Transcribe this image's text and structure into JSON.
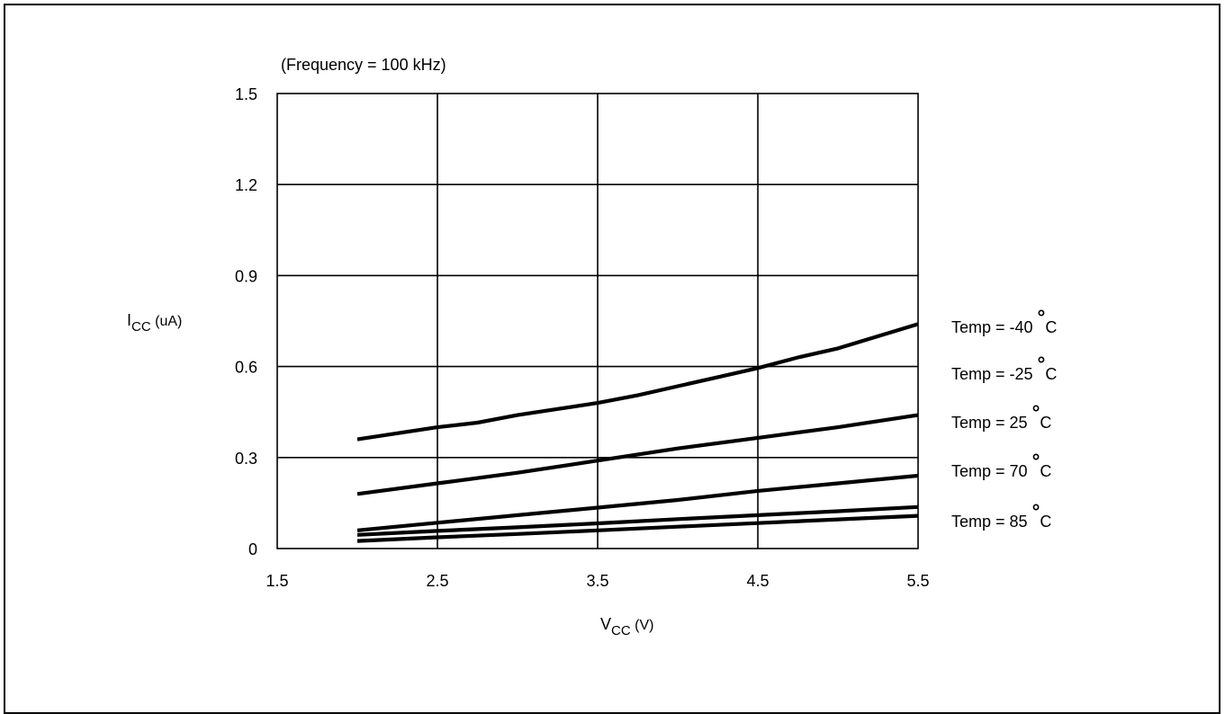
{
  "chart_data": {
    "type": "line",
    "annotation": "(Frequency = 100 kHz)",
    "ylabel": {
      "main": "I",
      "sub": "CC",
      "unit": " (uA)"
    },
    "xlabel": {
      "main": "V",
      "sub": "CC",
      "unit": " (V)"
    },
    "xlim": [
      1.5,
      5.5
    ],
    "ylim": [
      0,
      1.5
    ],
    "xticks": [
      1.5,
      2.5,
      3.5,
      4.5,
      5.5
    ],
    "xtick_labels": [
      "1.5",
      "2.5",
      "3.5",
      "4.5",
      "5.5"
    ],
    "yticks": [
      0,
      0.3,
      0.6,
      0.9,
      1.2,
      1.5
    ],
    "ytick_labels": [
      "0",
      "0.3",
      "0.6",
      "0.9",
      "1.2",
      "1.5"
    ],
    "grid": true,
    "legend_position": "right",
    "series": [
      {
        "name": "Temp = -40 °C",
        "legend": {
          "prefix": "Temp = -40 ",
          "degree": "°",
          "unit": "C"
        },
        "x": [
          2.0,
          2.25,
          2.5,
          2.75,
          3.0,
          3.25,
          3.5,
          3.75,
          4.0,
          4.25,
          4.5,
          4.75,
          5.0,
          5.25,
          5.5
        ],
        "y": [
          0.36,
          0.38,
          0.4,
          0.415,
          0.44,
          0.46,
          0.48,
          0.505,
          0.535,
          0.565,
          0.595,
          0.63,
          0.66,
          0.7,
          0.74
        ]
      },
      {
        "name": "Temp = -25 °C",
        "legend": {
          "prefix": "Temp = -25 ",
          "degree": "°",
          "unit": "C"
        },
        "x": [
          2.0,
          2.5,
          3.0,
          3.5,
          4.0,
          4.5,
          5.0,
          5.5
        ],
        "y": [
          0.18,
          0.215,
          0.25,
          0.29,
          0.33,
          0.365,
          0.4,
          0.44
        ]
      },
      {
        "name": "Temp = 25 °C",
        "legend": {
          "prefix": "Temp = 25 ",
          "degree": "°",
          "unit": "C"
        },
        "x": [
          2.0,
          2.5,
          3.0,
          3.5,
          4.0,
          4.5,
          5.0,
          5.5
        ],
        "y": [
          0.06,
          0.085,
          0.11,
          0.135,
          0.16,
          0.19,
          0.215,
          0.24
        ]
      },
      {
        "name": "Temp = 70 °C",
        "legend": {
          "prefix": "Temp = 70 ",
          "degree": "°",
          "unit": "C"
        },
        "x": [
          2.0,
          2.5,
          3.0,
          3.5,
          4.0,
          4.5,
          5.0,
          5.5
        ],
        "y": [
          0.045,
          0.058,
          0.07,
          0.083,
          0.097,
          0.11,
          0.123,
          0.137
        ]
      },
      {
        "name": "Temp = 85 °C",
        "legend": {
          "prefix": "Temp = 85 ",
          "degree": "°",
          "unit": "C"
        },
        "x": [
          2.0,
          2.5,
          3.0,
          3.5,
          4.0,
          4.5,
          5.0,
          5.5
        ],
        "y": [
          0.025,
          0.037,
          0.048,
          0.06,
          0.072,
          0.084,
          0.096,
          0.108
        ]
      }
    ],
    "line_color": "#000000"
  }
}
